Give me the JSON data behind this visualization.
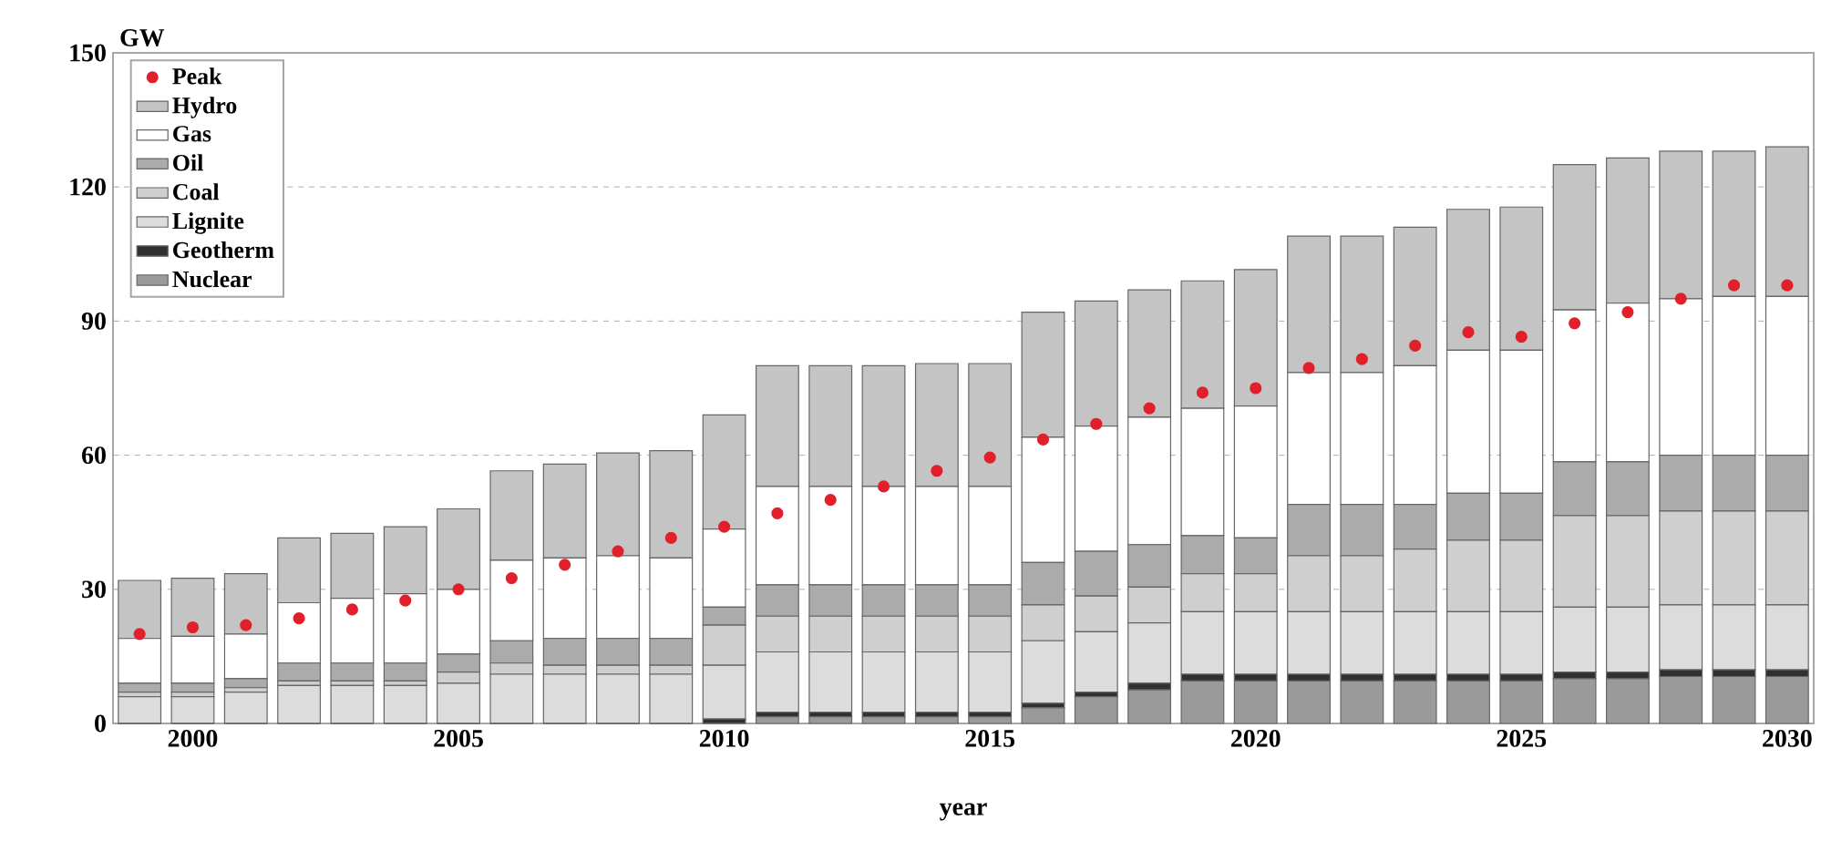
{
  "chart_data": {
    "type": "bar",
    "stacked": true,
    "xlabel": "year",
    "ylabel": "GW",
    "x": [
      1999,
      2000,
      2001,
      2002,
      2003,
      2004,
      2005,
      2006,
      2007,
      2008,
      2009,
      2010,
      2011,
      2012,
      2013,
      2014,
      2015,
      2016,
      2017,
      2018,
      2019,
      2020,
      2021,
      2022,
      2023,
      2024,
      2025,
      2026,
      2027,
      2028,
      2029,
      2030
    ],
    "xlim": [
      1998.5,
      2030.5
    ],
    "xticks": [
      2000,
      2005,
      2010,
      2015,
      2020,
      2025,
      2030
    ],
    "ylim": [
      0,
      150
    ],
    "yticks": [
      0,
      30,
      60,
      90,
      120,
      150
    ],
    "grid": "y",
    "legend": "top left",
    "marker": "circle",
    "series": [
      {
        "name": "Nuclear",
        "color": "#9a9a9a",
        "values": [
          0,
          0,
          0,
          0,
          0,
          0,
          0,
          0,
          0,
          0,
          0,
          0,
          1.5,
          1.5,
          1.5,
          1.5,
          1.5,
          3.5,
          6,
          7.5,
          9.5,
          9.5,
          9.5,
          9.5,
          9.5,
          9.5,
          9.5,
          10,
          10,
          10.5,
          10.5,
          10.5
        ]
      },
      {
        "name": "Geotherm",
        "color": "#303030",
        "values": [
          0,
          0,
          0,
          0,
          0,
          0,
          0,
          0,
          0,
          0,
          0,
          1,
          1,
          1,
          1,
          1,
          1,
          1,
          1,
          1.5,
          1.5,
          1.5,
          1.5,
          1.5,
          1.5,
          1.5,
          1.5,
          1.5,
          1.5,
          1.5,
          1.5,
          1.5
        ]
      },
      {
        "name": "Lignite",
        "color": "#dcdcdc",
        "values": [
          6,
          6,
          7,
          8.5,
          8.5,
          8.5,
          9,
          11,
          11,
          11,
          11,
          12,
          13.5,
          13.5,
          13.5,
          13.5,
          13.5,
          14,
          13.5,
          13.5,
          14,
          14,
          14,
          14,
          14,
          14,
          14,
          14.5,
          14.5,
          14.5,
          14.5,
          14.5
        ]
      },
      {
        "name": "Coal",
        "color": "#cfcfcf",
        "values": [
          1,
          1,
          1,
          1,
          1,
          1,
          2.5,
          2.5,
          2,
          2,
          2,
          9,
          8,
          8,
          8,
          8,
          8,
          8,
          8,
          8,
          8.5,
          8.5,
          12.5,
          12.5,
          14,
          16,
          16,
          20.5,
          20.5,
          21,
          21,
          21
        ]
      },
      {
        "name": "Oil",
        "color": "#ababab",
        "values": [
          2,
          2,
          2,
          4,
          4,
          4,
          4,
          5,
          6,
          6,
          6,
          4,
          7,
          7,
          7,
          7,
          7,
          9.5,
          10,
          9.5,
          8.5,
          8,
          11.5,
          11.5,
          10,
          10.5,
          10.5,
          12,
          12,
          12.5,
          12.5,
          12.5
        ]
      },
      {
        "name": "Gas",
        "color": "#ffffff",
        "values": [
          10,
          10.5,
          10,
          13.5,
          14.5,
          15.5,
          14.5,
          18,
          18,
          18.5,
          18,
          17.5,
          22,
          22,
          22,
          22,
          22,
          28,
          28,
          28.5,
          28.5,
          29.5,
          29.5,
          29.5,
          31,
          32,
          32,
          34,
          35.5,
          35,
          35.5,
          35.5
        ]
      },
      {
        "name": "Hydro",
        "color": "#c4c4c4",
        "values": [
          13,
          13,
          13.5,
          14.5,
          14.5,
          15,
          18,
          20,
          21,
          23,
          24,
          25.5,
          27,
          27,
          27,
          27.5,
          27.5,
          28,
          28,
          28.5,
          28.5,
          30.5,
          30.5,
          30.5,
          31,
          31.5,
          32,
          32.5,
          32.5,
          33,
          32.5,
          33.5
        ]
      },
      {
        "name": "Peak",
        "type": "scatter",
        "color": "#e0202a",
        "values": [
          20,
          21.5,
          22,
          23.5,
          25.5,
          27.5,
          30,
          32.5,
          35.5,
          38.5,
          41.5,
          44,
          47,
          50,
          53,
          56.5,
          59.5,
          63.5,
          67,
          70.5,
          74,
          75,
          79.5,
          81.5,
          84.5,
          87.5,
          86.5,
          89.5,
          92,
          95,
          98,
          98
        ]
      }
    ]
  }
}
